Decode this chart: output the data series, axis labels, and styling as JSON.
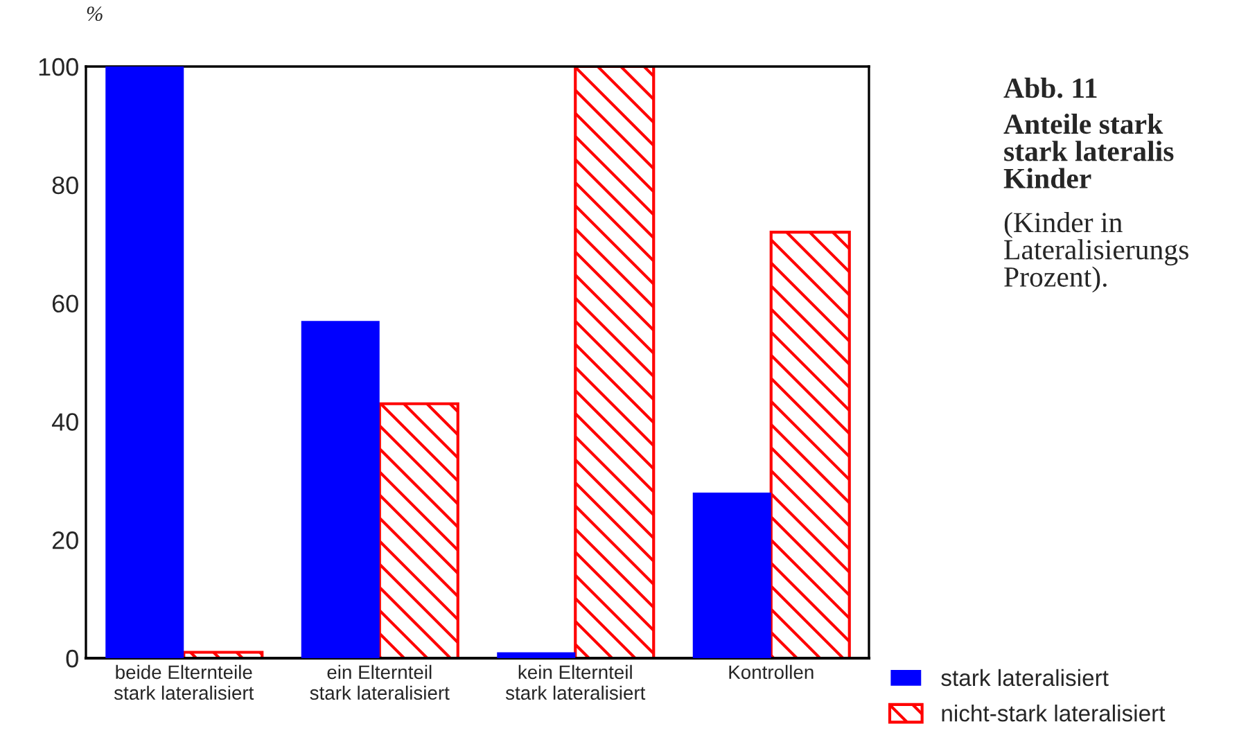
{
  "chart_data": {
    "type": "bar",
    "title": "Abb. 11",
    "subtitle": "Anteile stark\nstark lateralis\nKinder",
    "annotations": [
      "(Kinder in\nLateralisierungs\nProzent)."
    ],
    "ylabel": "%",
    "categories": [
      "beide Elternteile\nstark lateralisiert",
      "ein Elternteil\nstark lateralisiert",
      "kein Elternteil\nstark lateralisiert",
      "Kontrollen"
    ],
    "series": [
      {
        "name": "stark lateralisiert",
        "color": "#0000ff",
        "values": [
          100,
          57,
          1,
          28
        ]
      },
      {
        "name": "nicht-stark lateralisiert",
        "color": "#ff0000",
        "values": [
          1,
          43,
          100,
          72
        ]
      }
    ],
    "ylim": [
      0,
      100
    ],
    "yticks": [
      0,
      20,
      40,
      60,
      80,
      100
    ],
    "grid": false,
    "legend": "bottom right"
  }
}
